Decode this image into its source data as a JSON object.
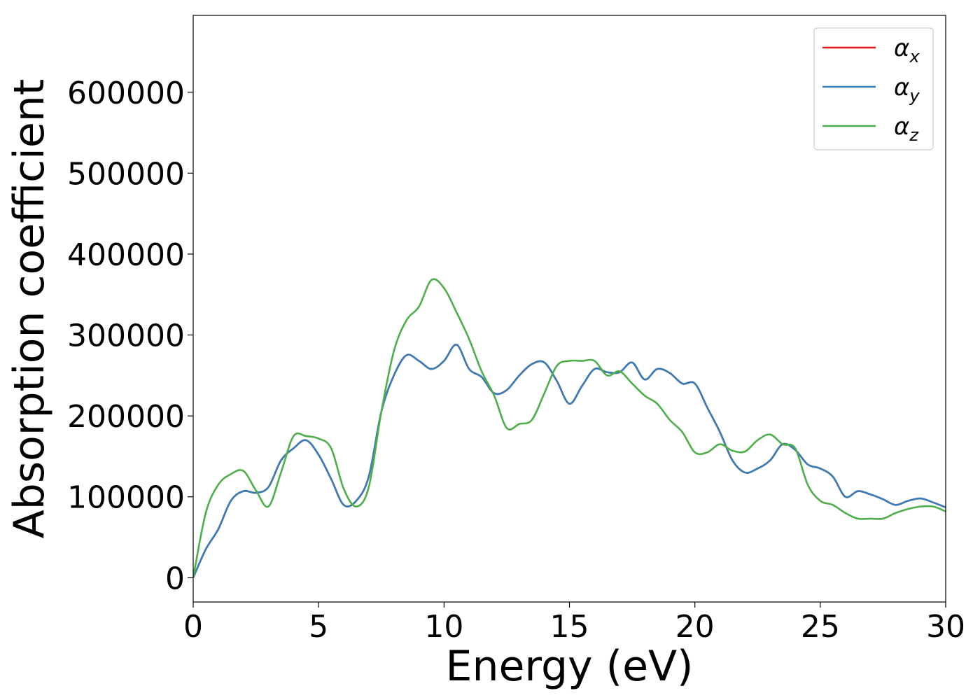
{
  "chart_data": {
    "type": "line",
    "title": "",
    "xlabel": "Energy (eV)",
    "ylabel": "Absorption coefficient",
    "xlim": [
      0,
      30
    ],
    "ylim": [
      -30000,
      695000
    ],
    "xticks": [
      0,
      5,
      10,
      15,
      20,
      25,
      30
    ],
    "yticks": [
      0,
      100000,
      200000,
      300000,
      400000,
      500000,
      600000
    ],
    "grid": false,
    "legend_position": "top-right",
    "series": [
      {
        "name": "α_x",
        "legend_base": "α",
        "legend_sub": "x",
        "color": "#e41a1c",
        "x": [
          0,
          0.5,
          1,
          1.5,
          2,
          2.5,
          3,
          3.5,
          4,
          4.5,
          5,
          5.5,
          6,
          6.5,
          7,
          7.5,
          8,
          8.5,
          9,
          9.5,
          10,
          10.5,
          11,
          11.5,
          12,
          12.5,
          13,
          13.5,
          14,
          14.5,
          15,
          15.5,
          16,
          16.5,
          17,
          17.5,
          18,
          18.5,
          19,
          19.5,
          20,
          20.5,
          21,
          21.5,
          22,
          22.5,
          23,
          23.5,
          24,
          24.5,
          25,
          25.5,
          26,
          26.5,
          27,
          27.5,
          28,
          28.5,
          29,
          29.5,
          30
        ],
        "y": [
          0,
          35000,
          60000,
          95000,
          107000,
          105000,
          112000,
          145000,
          160000,
          170000,
          152000,
          122000,
          90000,
          95000,
          125000,
          205000,
          250000,
          275000,
          268000,
          258000,
          268000,
          288000,
          258000,
          248000,
          228000,
          232000,
          250000,
          264000,
          266000,
          243000,
          215000,
          237000,
          258000,
          254000,
          254000,
          266000,
          245000,
          258000,
          253000,
          240000,
          240000,
          210000,
          180000,
          145000,
          130000,
          135000,
          145000,
          165000,
          158000,
          140000,
          135000,
          125000,
          100000,
          107000,
          103000,
          97000,
          90000,
          95000,
          98000,
          93000,
          87000
        ]
      },
      {
        "name": "α_y",
        "legend_base": "α",
        "legend_sub": "y",
        "color": "#377eb8",
        "x": [
          0,
          0.5,
          1,
          1.5,
          2,
          2.5,
          3,
          3.5,
          4,
          4.5,
          5,
          5.5,
          6,
          6.5,
          7,
          7.5,
          8,
          8.5,
          9,
          9.5,
          10,
          10.5,
          11,
          11.5,
          12,
          12.5,
          13,
          13.5,
          14,
          14.5,
          15,
          15.5,
          16,
          16.5,
          17,
          17.5,
          18,
          18.5,
          19,
          19.5,
          20,
          20.5,
          21,
          21.5,
          22,
          22.5,
          23,
          23.5,
          24,
          24.5,
          25,
          25.5,
          26,
          26.5,
          27,
          27.5,
          28,
          28.5,
          29,
          29.5,
          30
        ],
        "y": [
          0,
          35000,
          60000,
          95000,
          107000,
          105000,
          112000,
          145000,
          160000,
          170000,
          152000,
          122000,
          90000,
          95000,
          125000,
          205000,
          250000,
          275000,
          268000,
          258000,
          268000,
          288000,
          258000,
          248000,
          228000,
          232000,
          250000,
          264000,
          266000,
          243000,
          215000,
          237000,
          258000,
          254000,
          254000,
          266000,
          245000,
          258000,
          253000,
          240000,
          240000,
          210000,
          180000,
          145000,
          130000,
          135000,
          145000,
          165000,
          158000,
          140000,
          135000,
          125000,
          100000,
          107000,
          103000,
          97000,
          90000,
          95000,
          98000,
          93000,
          87000
        ]
      },
      {
        "name": "α_z",
        "legend_base": "α",
        "legend_sub": "z",
        "color": "#4daf4a",
        "x": [
          0,
          0.5,
          1,
          1.5,
          2,
          2.5,
          3,
          3.5,
          4,
          4.5,
          5,
          5.5,
          6,
          6.5,
          7,
          7.5,
          8,
          8.5,
          9,
          9.5,
          10,
          10.5,
          11,
          11.5,
          12,
          12.5,
          13,
          13.5,
          14,
          14.5,
          15,
          15.5,
          16,
          16.5,
          17,
          17.5,
          18,
          18.5,
          19,
          19.5,
          20,
          20.5,
          21,
          21.5,
          22,
          22.5,
          23,
          23.5,
          24,
          24.5,
          25,
          25.5,
          26,
          26.5,
          27,
          27.5,
          28,
          28.5,
          29,
          29.5,
          30
        ],
        "y": [
          0,
          80000,
          115000,
          128000,
          132000,
          108000,
          88000,
          130000,
          175000,
          175000,
          172000,
          160000,
          110000,
          88000,
          112000,
          205000,
          280000,
          318000,
          335000,
          368000,
          358000,
          328000,
          295000,
          255000,
          225000,
          185000,
          190000,
          195000,
          228000,
          262000,
          268000,
          268000,
          268000,
          250000,
          255000,
          240000,
          225000,
          215000,
          195000,
          180000,
          155000,
          155000,
          165000,
          157000,
          156000,
          170000,
          177000,
          165000,
          160000,
          115000,
          95000,
          90000,
          80000,
          73000,
          73000,
          73000,
          80000,
          85000,
          88000,
          88000,
          82000
        ]
      }
    ]
  }
}
